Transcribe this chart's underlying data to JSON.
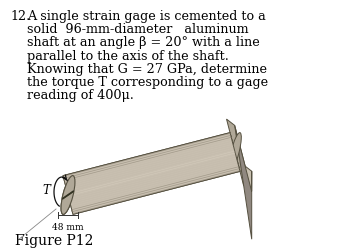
{
  "title_number": "12.",
  "problem_text_lines": [
    "A single strain gage is cemented to a",
    "solid  96-mm-diameter   aluminum",
    "shaft at an angle β = 20° with a line",
    "parallel to the axis of the shaft.",
    "Knowing that G = 27 GPa, determine",
    "the torque T corresponding to a gage",
    "reading of 400μ."
  ],
  "figure_label": "Figure P12",
  "dim_label": "48 mm",
  "bg_color": "#ffffff",
  "text_color": "#000000",
  "shaft_body_color": "#c8bfb0",
  "shaft_highlight": "#e8e0d0",
  "shaft_shadow": "#9a9080",
  "shaft_edge": "#555040",
  "wall_face_color": "#b0a898",
  "wall_top_color": "#c8c0b0",
  "wall_side_color": "#908880",
  "left_cap_color": "#b0a898",
  "font_size_text": 9.2,
  "font_size_fig": 10.0,
  "font_size_dim": 6.5,
  "font_size_T": 8.5
}
